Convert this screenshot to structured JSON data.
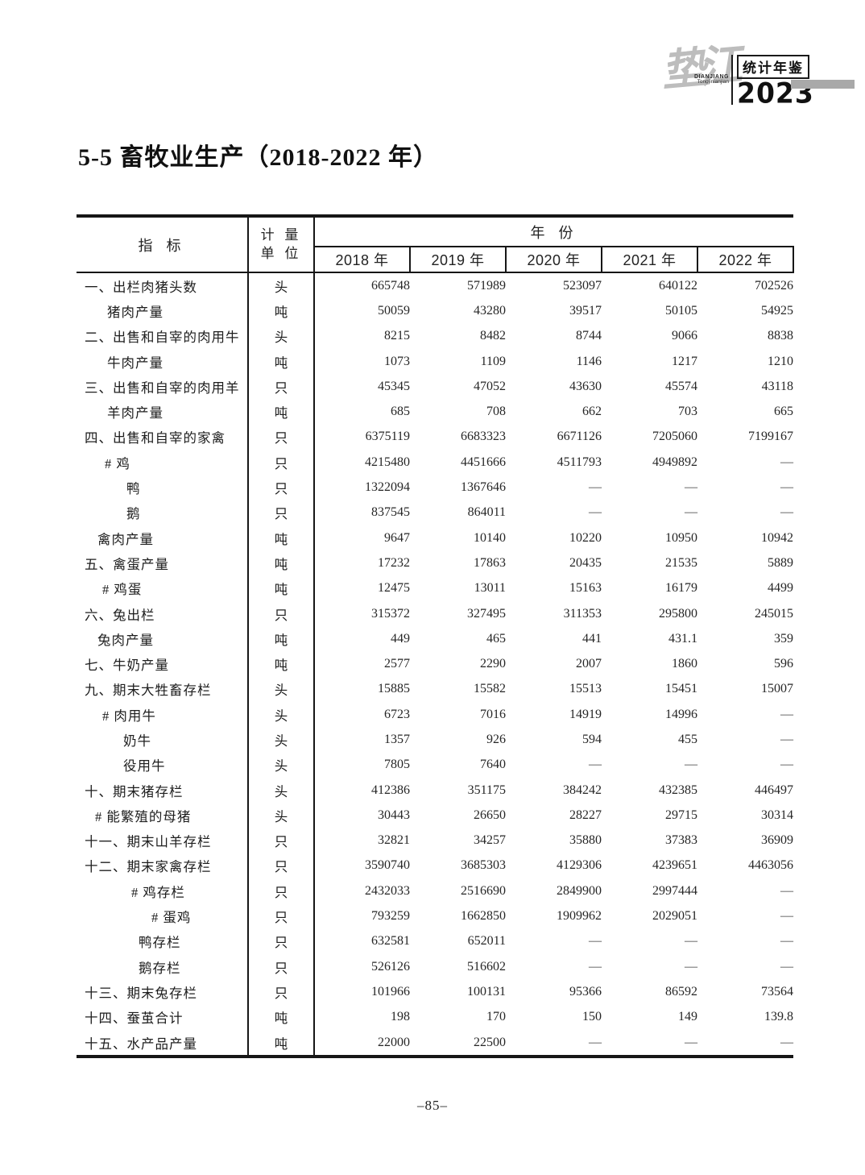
{
  "logo": {
    "calligraphy": "垫江",
    "romanized_line1": "DIANJIANG",
    "romanized_line2": "Tongjinianjian",
    "yearbook_title": "统计年鉴",
    "yearbook_year": "2023",
    "accent_gray": "#a9a9a9"
  },
  "title": "5-5  畜牧业生产（2018-2022 年）",
  "table": {
    "header": {
      "indicator": "指  标",
      "unit_line1": "计  量",
      "unit_line2": "单  位",
      "year_group": "年  份",
      "years": [
        "2018 年",
        "2019 年",
        "2020 年",
        "2021 年",
        "2022 年"
      ]
    },
    "rows": [
      {
        "label": "一、出栏肉猪头数",
        "indent": 10,
        "unit": "头",
        "values": [
          "665748",
          "571989",
          "523097",
          "640122",
          "702526"
        ]
      },
      {
        "label": "猪肉产量",
        "indent": 38,
        "unit": "吨",
        "values": [
          "50059",
          "43280",
          "39517",
          "50105",
          "54925"
        ]
      },
      {
        "label": "二、出售和自宰的肉用牛",
        "indent": 10,
        "unit": "头",
        "values": [
          "8215",
          "8482",
          "8744",
          "9066",
          "8838"
        ]
      },
      {
        "label": "牛肉产量",
        "indent": 38,
        "unit": "吨",
        "values": [
          "1073",
          "1109",
          "1146",
          "1217",
          "1210"
        ]
      },
      {
        "label": "三、出售和自宰的肉用羊",
        "indent": 10,
        "unit": "只",
        "values": [
          "45345",
          "47052",
          "43630",
          "45574",
          "43118"
        ]
      },
      {
        "label": "羊肉产量",
        "indent": 38,
        "unit": "吨",
        "values": [
          "685",
          "708",
          "662",
          "703",
          "665"
        ]
      },
      {
        "label": "四、出售和自宰的家禽",
        "indent": 10,
        "unit": "只",
        "values": [
          "6375119",
          "6683323",
          "6671126",
          "7205060",
          "7199167"
        ]
      },
      {
        "label": "# 鸡",
        "indent": 35,
        "unit": "只",
        "values": [
          "4215480",
          "4451666",
          "4511793",
          "4949892",
          "—"
        ]
      },
      {
        "label": "鸭",
        "indent": 62,
        "unit": "只",
        "values": [
          "1322094",
          "1367646",
          "—",
          "—",
          "—"
        ]
      },
      {
        "label": "鹅",
        "indent": 62,
        "unit": "只",
        "values": [
          "837545",
          "864011",
          "—",
          "—",
          "—"
        ]
      },
      {
        "label": "禽肉产量",
        "indent": 26,
        "unit": "吨",
        "values": [
          "9647",
          "10140",
          "10220",
          "10950",
          "10942"
        ]
      },
      {
        "label": "五、禽蛋产量",
        "indent": 10,
        "unit": "吨",
        "values": [
          "17232",
          "17863",
          "20435",
          "21535",
          "5889"
        ]
      },
      {
        "label": "# 鸡蛋",
        "indent": 32,
        "unit": "吨",
        "values": [
          "12475",
          "13011",
          "15163",
          "16179",
          "4499"
        ]
      },
      {
        "label": "六、兔出栏",
        "indent": 10,
        "unit": "只",
        "values": [
          "315372",
          "327495",
          "311353",
          "295800",
          "245015"
        ]
      },
      {
        "label": "兔肉产量",
        "indent": 26,
        "unit": "吨",
        "values": [
          "449",
          "465",
          "441",
          "431.1",
          "359"
        ]
      },
      {
        "label": "七、牛奶产量",
        "indent": 10,
        "unit": "吨",
        "values": [
          "2577",
          "2290",
          "2007",
          "1860",
          "596"
        ]
      },
      {
        "label": "九、期末大牲畜存栏",
        "indent": 10,
        "unit": "头",
        "values": [
          "15885",
          "15582",
          "15513",
          "15451",
          "15007"
        ]
      },
      {
        "label": "# 肉用牛",
        "indent": 32,
        "unit": "头",
        "values": [
          "6723",
          "7016",
          "14919",
          "14996",
          "—"
        ]
      },
      {
        "label": "奶牛",
        "indent": 58,
        "unit": "头",
        "values": [
          "1357",
          "926",
          "594",
          "455",
          "—"
        ]
      },
      {
        "label": "役用牛",
        "indent": 58,
        "unit": "头",
        "values": [
          "7805",
          "7640",
          "—",
          "—",
          "—"
        ]
      },
      {
        "label": "十、期末猪存栏",
        "indent": 10,
        "unit": "头",
        "values": [
          "412386",
          "351175",
          "384242",
          "432385",
          "446497"
        ]
      },
      {
        "label": "# 能繁殖的母猪",
        "indent": 23,
        "unit": "头",
        "values": [
          "30443",
          "26650",
          "28227",
          "29715",
          "30314"
        ]
      },
      {
        "label": "十一、期末山羊存栏",
        "indent": 10,
        "unit": "只",
        "values": [
          "32821",
          "34257",
          "35880",
          "37383",
          "36909"
        ]
      },
      {
        "label": "十二、期末家禽存栏",
        "indent": 10,
        "unit": "只",
        "values": [
          "3590740",
          "3685303",
          "4129306",
          "4239651",
          "4463056"
        ]
      },
      {
        "label": "# 鸡存栏",
        "indent": 68,
        "unit": "只",
        "values": [
          "2432033",
          "2516690",
          "2849900",
          "2997444",
          "—"
        ]
      },
      {
        "label": "# 蛋鸡",
        "indent": 93,
        "unit": "只",
        "values": [
          "793259",
          "1662850",
          "1909962",
          "2029051",
          "—"
        ]
      },
      {
        "label": "鸭存栏",
        "indent": 77,
        "unit": "只",
        "values": [
          "632581",
          "652011",
          "—",
          "—",
          "—"
        ]
      },
      {
        "label": "鹅存栏",
        "indent": 77,
        "unit": "只",
        "values": [
          "526126",
          "516602",
          "—",
          "—",
          "—"
        ]
      },
      {
        "label": "十三、期末兔存栏",
        "indent": 10,
        "unit": "只",
        "values": [
          "101966",
          "100131",
          "95366",
          "86592",
          "73564"
        ]
      },
      {
        "label": "十四、蚕茧合计",
        "indent": 10,
        "unit": "吨",
        "values": [
          "198",
          "170",
          "150",
          "149",
          "139.8"
        ]
      },
      {
        "label": "十五、水产品产量",
        "indent": 10,
        "unit": "吨",
        "values": [
          "22000",
          "22500",
          "—",
          "—",
          "—"
        ]
      }
    ]
  },
  "footer": {
    "page_number": "–85–"
  }
}
